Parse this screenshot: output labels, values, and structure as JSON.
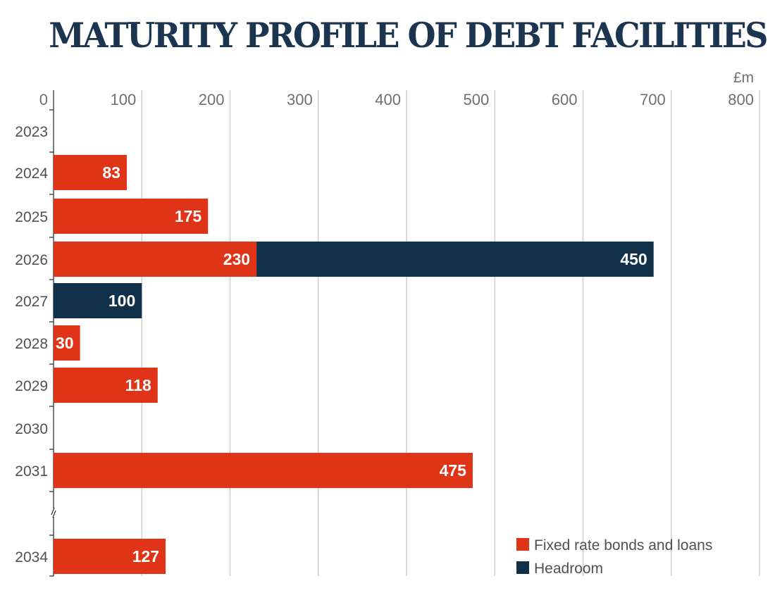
{
  "title": "MATURITY PROFILE OF DEBT FACILITIES",
  "chart_data": {
    "type": "bar",
    "orientation": "horizontal",
    "stacked": true,
    "title": "MATURITY PROFILE OF DEBT FACILITIES",
    "unit": "£m",
    "xlim": [
      0,
      800
    ],
    "x_ticks": [
      0,
      100,
      200,
      300,
      400,
      500,
      600,
      700,
      800
    ],
    "categories": [
      "2023",
      "2024",
      "2025",
      "2026",
      "2027",
      "2028",
      "2029",
      "2030",
      "2031",
      "2034"
    ],
    "axis_break_between": [
      "2031",
      "2034"
    ],
    "series": [
      {
        "name": "Fixed rate bonds and loans",
        "color": "#e03418",
        "values": [
          0,
          83,
          175,
          230,
          0,
          30,
          118,
          0,
          475,
          127
        ]
      },
      {
        "name": "Headroom",
        "color": "#11304a",
        "values": [
          0,
          0,
          0,
          450,
          100,
          0,
          0,
          0,
          0,
          0
        ]
      }
    ],
    "grid": true,
    "legend_position": "bottom-right"
  }
}
